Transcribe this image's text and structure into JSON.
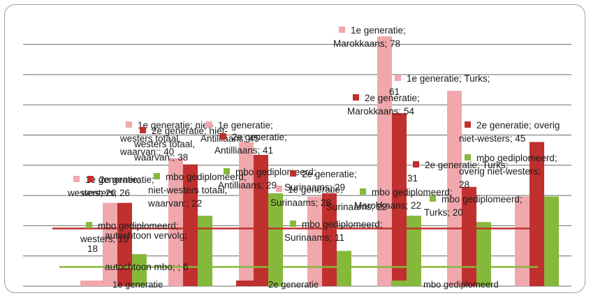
{
  "chart_data": {
    "type": "bar",
    "ylim": [
      0,
      85
    ],
    "grid": true,
    "legend_position": "bottom",
    "series": [
      {
        "name": "1e generatie",
        "color": "#f0a8ac"
      },
      {
        "name": "2e generatie",
        "color": "#c0302e"
      },
      {
        "name": "mbo gediplomeerd",
        "color": "#86b83c"
      }
    ],
    "bars": [
      {
        "series": 0,
        "value": 26
      },
      {
        "series": 1,
        "value": 26
      },
      {
        "series": 2,
        "value": 10
      },
      {
        "series": 0,
        "value": 40
      },
      {
        "series": 1,
        "value": 38
      },
      {
        "series": 2,
        "value": 22
      },
      {
        "series": 0,
        "value": 45
      },
      {
        "series": 1,
        "value": 41
      },
      {
        "series": 2,
        "value": 29
      },
      {
        "series": 0,
        "value": 28
      },
      {
        "series": 1,
        "value": 29
      },
      {
        "series": 2,
        "value": 11
      },
      {
        "series": 0,
        "value": 78
      },
      {
        "series": 1,
        "value": 54
      },
      {
        "series": 2,
        "value": 22
      },
      {
        "series": 0,
        "value": 61
      },
      {
        "series": 1,
        "value": 31
      },
      {
        "series": 2,
        "value": 20
      },
      {
        "series": 0,
        "value": 28
      },
      {
        "series": 1,
        "value": 45
      },
      {
        "series": 2,
        "value": 28
      }
    ],
    "reference_lines": [
      {
        "value": 18,
        "color": "#c0302e"
      },
      {
        "value": 6,
        "color": "#86b83c"
      }
    ],
    "data_labels": [
      {
        "lines": [
          "1e generatie;",
          "Marokkaans; 78"
        ]
      },
      {
        "lines": [
          "1e generatie; Turks;",
          "61"
        ]
      },
      {
        "lines": [
          "2e generatie;",
          "Marokkaans; 54"
        ]
      },
      {
        "lines": [
          "2e generatie; overig",
          "niet-westers; 45"
        ]
      },
      {
        "lines": [
          "1e generatie; niet-",
          "westers totaal,",
          "waarvan:; 40"
        ]
      },
      {
        "lines": [
          "2e generatie; niet-",
          "westers totaal,",
          "waarvan:; 38"
        ]
      },
      {
        "lines": [
          "1e generatie;",
          "Antilliaans; 45"
        ]
      },
      {
        "lines": [
          "2e generatie;",
          "Antilliaans; 41"
        ]
      },
      {
        "lines": [
          "mbo gediplomeerd;",
          "overig niet-westers;",
          "28"
        ]
      },
      {
        "lines": [
          "1e generatie;",
          "westers; 26"
        ]
      },
      {
        "lines": [
          "2e generatie;",
          "westers; 26"
        ]
      },
      {
        "lines": [
          "mbo gediplomeerd;",
          "niet-westers totaal,",
          "waarvan:; 22"
        ]
      },
      {
        "lines": [
          "mbo gediplomeerd;",
          "Antilliaans; 29"
        ]
      },
      {
        "lines": [
          "2e generatie;",
          "Surinaams; 29"
        ]
      },
      {
        "lines": [
          "1e generatie;",
          "Surinaams; 28"
        ]
      },
      {
        "lines": [
          "2e generatie; Turks;",
          "31"
        ]
      },
      {
        "lines": [
          "mbo gediplomeerd;",
          "Marokkaans; 22"
        ]
      },
      {
        "lines": [
          "Surinaams; 22"
        ]
      },
      {
        "lines": [
          "mbo gediplomeerd;",
          "Turks; 20"
        ]
      },
      {
        "lines": [
          "mbo gediplomeerd;",
          "westers; 10"
        ]
      },
      {
        "lines": [
          "mbo gediplomeerd;",
          "Surinaams; 11"
        ]
      },
      {
        "lines": [
          "autochtoon vervolg;",
          "18"
        ]
      },
      {
        "lines": [
          "autochtoon mbo; ; 6"
        ]
      }
    ]
  }
}
